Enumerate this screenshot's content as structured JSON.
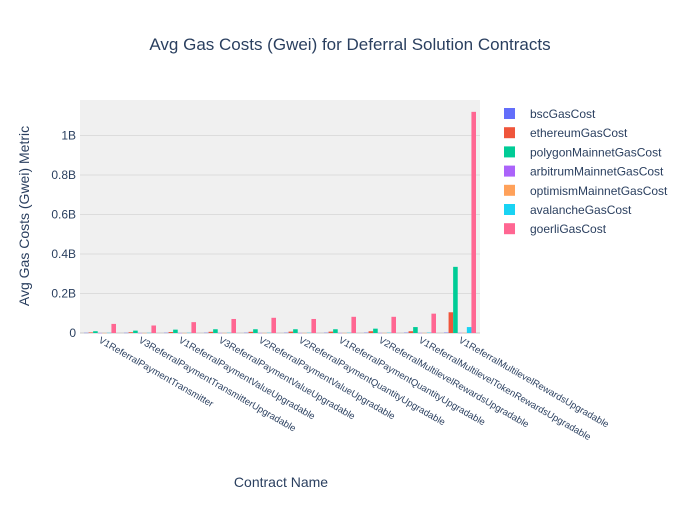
{
  "chart_data": {
    "type": "bar",
    "title": "Avg Gas Costs (Gwei) for Deferral Solution Contracts",
    "xlabel": "Contract Name",
    "ylabel": "Avg Gas Costs (Gwei) Metric",
    "ylim": [
      0,
      1180000000
    ],
    "yticks": [
      0,
      200000000,
      400000000,
      600000000,
      800000000,
      1000000000
    ],
    "ytick_labels": [
      "0",
      "0.2B",
      "0.4B",
      "0.6B",
      "0.8B",
      "1B"
    ],
    "grid": true,
    "legend_position": "right",
    "categories": [
      "V1ReferralPaymentTransmitter",
      "V3ReferralPaymentTransmitterUpgradable",
      "V1ReferralPaymentValueUpgradable",
      "V3ReferralPaymentValueUpgradable",
      "V2ReferralPaymentValueUpgradable",
      "V2ReferralPaymentQuantityUpgradable",
      "V1ReferralPaymentQuantityUpgradable",
      "V2ReferralMultilevelRewardsUpgradable",
      "V1ReferralMultilevelTokenRewardsUpgradable",
      "V1ReferralMultilevelRewardsUpgradable"
    ],
    "series": [
      {
        "name": "bscGasCost",
        "color": "#636efa",
        "values": [
          1000000,
          1000000,
          1200000,
          1300000,
          1300000,
          1400000,
          1400000,
          1600000,
          1700000,
          2000000
        ]
      },
      {
        "name": "ethereumGasCost",
        "color": "#EF553B",
        "values": [
          3000000,
          4000000,
          5000000,
          6000000,
          6000000,
          7000000,
          7000000,
          9000000,
          9000000,
          105000000
        ]
      },
      {
        "name": "polygonMainnetGasCost",
        "color": "#00cc96",
        "values": [
          9000000,
          12000000,
          17000000,
          19000000,
          19000000,
          19000000,
          19000000,
          22000000,
          30000000,
          335000000
        ]
      },
      {
        "name": "arbitrumMainnetGasCost",
        "color": "#ab63fa",
        "values": [
          300000,
          300000,
          300000,
          400000,
          400000,
          400000,
          400000,
          500000,
          500000,
          700000
        ]
      },
      {
        "name": "optimismMainnetGasCost",
        "color": "#FFA15A",
        "values": [
          300000,
          300000,
          300000,
          400000,
          400000,
          400000,
          400000,
          500000,
          500000,
          700000
        ]
      },
      {
        "name": "avalancheGasCost",
        "color": "#19d3f3",
        "values": [
          1000000,
          1000000,
          1200000,
          1300000,
          1300000,
          1400000,
          1400000,
          1600000,
          2000000,
          30000000
        ]
      },
      {
        "name": "goerliGasCost",
        "color": "#FF6692",
        "values": [
          46000000,
          38000000,
          55000000,
          71000000,
          77000000,
          71000000,
          82000000,
          82000000,
          98000000,
          1120000000
        ]
      }
    ]
  }
}
